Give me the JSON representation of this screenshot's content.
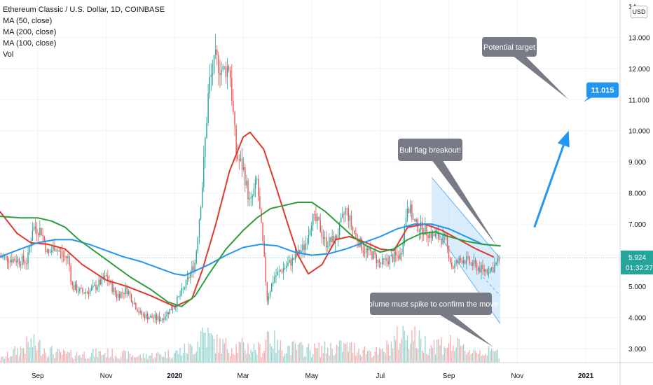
{
  "legend": {
    "title": "Ethereum Classic / U.S. Dollar, 1D, COINBASE",
    "ma50": "MA (50, close)",
    "ma200": "MA (200, close)",
    "ma100": "MA (100, close)",
    "vol": "Vol"
  },
  "currency_button": "USD",
  "price_labels": {
    "current_price": "5.924",
    "countdown": "01:32:27",
    "target": "11.015"
  },
  "annotations": {
    "potential_target": "Potential target",
    "bull_flag": "Bull flag breakout!",
    "volume_note": "Volume must spike to confirm the move"
  },
  "colors": {
    "ma50": "#e0382e",
    "ma100": "#2e9e3c",
    "ma200": "#2196f3",
    "up_candle": "#26a69a",
    "down_candle": "#ef5350",
    "channel_fill": "#bbdefb",
    "channel_line": "#64b5f6",
    "arrow": "#2196f3",
    "callout": "#787b86",
    "price_badge": "#26a69a",
    "target_badge": "#2196f3"
  },
  "chart_data": {
    "type": "line",
    "title": "Ethereum Classic / U.S. Dollar, 1D, COINBASE",
    "y_ticks": [
      "3.000",
      "4.000",
      "5.000",
      "6.000",
      "7.000",
      "8.000",
      "9.000",
      "10.000",
      "11.000",
      "12.000",
      "13.000"
    ],
    "y_top_label": "14",
    "ylim": [
      2.55,
      14.2
    ],
    "x_ticks": [
      {
        "label": "Sep",
        "t": 0.0
      },
      {
        "label": "Nov",
        "t": 2.0
      },
      {
        "label": "2020",
        "t": 4.0
      },
      {
        "label": "Mar",
        "t": 6.0
      },
      {
        "label": "May",
        "t": 8.0
      },
      {
        "label": "Jul",
        "t": 10.0
      },
      {
        "label": "Sep",
        "t": 12.0
      },
      {
        "label": "Nov",
        "t": 14.0
      },
      {
        "label": "2021",
        "t": 16.0
      }
    ],
    "xlim": [
      -1.1,
      17.0
    ],
    "price_path": [
      [
        -1.1,
        5.95
      ],
      [
        -0.6,
        5.85
      ],
      [
        -0.3,
        5.8
      ],
      [
        -0.15,
        6.9
      ],
      [
        0.1,
        6.8
      ],
      [
        0.3,
        6.0
      ],
      [
        0.5,
        6.3
      ],
      [
        0.7,
        6.0
      ],
      [
        0.9,
        5.9
      ],
      [
        1.0,
        5.0
      ],
      [
        1.3,
        4.8
      ],
      [
        1.6,
        4.9
      ],
      [
        2.0,
        5.3
      ],
      [
        2.3,
        4.7
      ],
      [
        2.6,
        4.9
      ],
      [
        3.0,
        4.1
      ],
      [
        3.3,
        4.0
      ],
      [
        3.6,
        3.95
      ],
      [
        4.0,
        4.4
      ],
      [
        4.3,
        5.0
      ],
      [
        4.6,
        5.8
      ],
      [
        4.8,
        8.2
      ],
      [
        5.0,
        11.5
      ],
      [
        5.2,
        12.3
      ],
      [
        5.4,
        11.9
      ],
      [
        5.6,
        12.1
      ],
      [
        5.8,
        9.2
      ],
      [
        6.0,
        8.8
      ],
      [
        6.2,
        7.6
      ],
      [
        6.4,
        8.4
      ],
      [
        6.6,
        6.0
      ],
      [
        6.7,
        4.6
      ],
      [
        6.9,
        5.3
      ],
      [
        7.2,
        5.6
      ],
      [
        7.5,
        5.9
      ],
      [
        7.8,
        6.3
      ],
      [
        8.0,
        7.2
      ],
      [
        8.2,
        7.0
      ],
      [
        8.4,
        6.4
      ],
      [
        8.7,
        6.5
      ],
      [
        9.0,
        7.5
      ],
      [
        9.2,
        6.8
      ],
      [
        9.5,
        6.2
      ],
      [
        9.8,
        6.0
      ],
      [
        10.0,
        5.7
      ],
      [
        10.3,
        5.9
      ],
      [
        10.6,
        6.0
      ],
      [
        10.8,
        7.7
      ],
      [
        11.0,
        7.0
      ],
      [
        11.3,
        6.8
      ],
      [
        11.6,
        6.6
      ],
      [
        11.9,
        6.5
      ],
      [
        12.1,
        5.6
      ],
      [
        12.4,
        5.9
      ],
      [
        12.7,
        5.7
      ],
      [
        13.0,
        5.5
      ],
      [
        13.3,
        5.6
      ],
      [
        13.5,
        5.9
      ]
    ],
    "volume_path": [
      [
        -1.1,
        0.1
      ],
      [
        -0.2,
        0.6
      ],
      [
        0.1,
        0.5
      ],
      [
        0.5,
        0.3
      ],
      [
        1.0,
        0.25
      ],
      [
        2.0,
        0.3
      ],
      [
        3.0,
        0.2
      ],
      [
        4.0,
        0.3
      ],
      [
        4.6,
        0.5
      ],
      [
        4.8,
        1.0
      ],
      [
        5.2,
        0.6
      ],
      [
        5.6,
        0.5
      ],
      [
        6.0,
        0.5
      ],
      [
        6.6,
        0.4
      ],
      [
        6.7,
        1.0
      ],
      [
        7.0,
        0.5
      ],
      [
        8.0,
        0.4
      ],
      [
        9.0,
        0.5
      ],
      [
        10.0,
        0.3
      ],
      [
        10.8,
        1.0
      ],
      [
        11.2,
        0.6
      ],
      [
        12.0,
        0.6
      ],
      [
        12.5,
        0.4
      ],
      [
        13.5,
        0.3
      ]
    ],
    "volume_axis_note": "volume shown as relative bar heights",
    "series": [
      {
        "name": "MA (50, close)",
        "points": [
          [
            -1.1,
            7.4
          ],
          [
            -0.6,
            6.7
          ],
          [
            -0.2,
            6.4
          ],
          [
            0.3,
            6.35
          ],
          [
            0.8,
            6.2
          ],
          [
            1.3,
            5.7
          ],
          [
            2.0,
            5.2
          ],
          [
            2.6,
            5.0
          ],
          [
            3.3,
            4.7
          ],
          [
            4.0,
            4.35
          ],
          [
            4.5,
            4.6
          ],
          [
            4.8,
            5.5
          ],
          [
            5.2,
            7.0
          ],
          [
            5.6,
            8.7
          ],
          [
            6.0,
            9.8
          ],
          [
            6.2,
            9.95
          ],
          [
            6.6,
            9.4
          ],
          [
            6.9,
            8.4
          ],
          [
            7.3,
            7.0
          ],
          [
            7.6,
            6.0
          ],
          [
            7.9,
            5.4
          ],
          [
            8.3,
            5.7
          ],
          [
            8.7,
            6.5
          ],
          [
            9.1,
            6.6
          ],
          [
            9.6,
            6.4
          ],
          [
            10.0,
            6.2
          ],
          [
            10.4,
            6.15
          ],
          [
            10.8,
            6.9
          ],
          [
            11.3,
            7.0
          ],
          [
            11.8,
            6.8
          ],
          [
            12.3,
            6.5
          ],
          [
            12.8,
            6.2
          ],
          [
            13.3,
            5.95
          ]
        ]
      },
      {
        "name": "MA (200, close)",
        "points": [
          [
            -1.1,
            5.95
          ],
          [
            -0.5,
            6.2
          ],
          [
            0.0,
            6.4
          ],
          [
            0.5,
            6.5
          ],
          [
            1.0,
            6.5
          ],
          [
            1.5,
            6.35
          ],
          [
            2.0,
            6.15
          ],
          [
            2.5,
            5.95
          ],
          [
            3.0,
            5.8
          ],
          [
            3.5,
            5.6
          ],
          [
            4.0,
            5.4
          ],
          [
            4.3,
            5.35
          ],
          [
            4.6,
            5.5
          ],
          [
            5.0,
            5.7
          ],
          [
            5.5,
            6.0
          ],
          [
            6.0,
            6.25
          ],
          [
            6.5,
            6.35
          ],
          [
            7.0,
            6.3
          ],
          [
            7.5,
            6.1
          ],
          [
            8.0,
            6.0
          ],
          [
            8.5,
            6.05
          ],
          [
            9.0,
            6.2
          ],
          [
            9.5,
            6.4
          ],
          [
            10.0,
            6.6
          ],
          [
            10.5,
            6.85
          ],
          [
            11.0,
            7.0
          ],
          [
            11.5,
            7.0
          ],
          [
            12.0,
            6.85
          ],
          [
            12.5,
            6.6
          ],
          [
            13.0,
            6.35
          ],
          [
            13.5,
            6.3
          ]
        ]
      },
      {
        "name": "MA (100, close)",
        "points": [
          [
            -1.1,
            7.25
          ],
          [
            -0.5,
            7.2
          ],
          [
            0.0,
            7.2
          ],
          [
            0.4,
            7.1
          ],
          [
            0.8,
            6.9
          ],
          [
            1.2,
            6.5
          ],
          [
            1.7,
            6.1
          ],
          [
            2.2,
            5.7
          ],
          [
            2.7,
            5.3
          ],
          [
            3.3,
            4.9
          ],
          [
            3.8,
            4.5
          ],
          [
            4.2,
            4.35
          ],
          [
            4.6,
            4.7
          ],
          [
            5.0,
            5.4
          ],
          [
            5.5,
            6.2
          ],
          [
            6.0,
            6.8
          ],
          [
            6.4,
            7.2
          ],
          [
            6.8,
            7.5
          ],
          [
            7.2,
            7.6
          ],
          [
            7.6,
            7.7
          ],
          [
            8.0,
            7.7
          ],
          [
            8.4,
            7.4
          ],
          [
            8.8,
            7.0
          ],
          [
            9.2,
            6.6
          ],
          [
            9.6,
            6.3
          ],
          [
            10.0,
            6.1
          ],
          [
            10.4,
            6.2
          ],
          [
            10.8,
            6.5
          ],
          [
            11.2,
            6.7
          ],
          [
            11.6,
            6.75
          ],
          [
            12.0,
            6.6
          ],
          [
            12.5,
            6.45
          ],
          [
            13.0,
            6.35
          ],
          [
            13.5,
            6.3
          ]
        ]
      }
    ],
    "channel": {
      "upper_start": [
        11.5,
        8.5
      ],
      "upper_end": [
        13.5,
        5.9
      ],
      "lower_start": [
        11.5,
        7.0
      ],
      "lower_end": [
        13.5,
        3.8
      ],
      "mid_dashed_start": [
        13.0,
        5.3
      ],
      "mid_dashed_end": [
        13.5,
        4.7
      ]
    },
    "current_price": 5.924,
    "target_price": 11.015,
    "arrow": {
      "from": [
        14.5,
        6.9
      ],
      "to": [
        15.5,
        10.0
      ]
    },
    "callout_pointers": {
      "potential_target": [
        15.5,
        11.0
      ],
      "bull_flag": [
        13.4,
        6.3
      ],
      "volume_note": [
        13.3,
        3.05
      ]
    }
  }
}
